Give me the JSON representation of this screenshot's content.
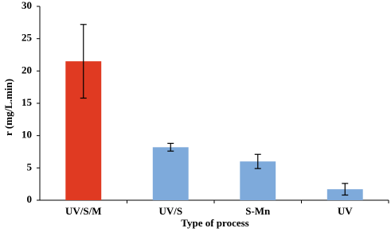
{
  "chart_data": {
    "type": "bar",
    "x_label": "Type of process",
    "y_label": "r (mg/L.min)",
    "categories": [
      "UV/S/M",
      "UV/S",
      "S-Mn",
      "UV"
    ],
    "values": [
      21.5,
      8.2,
      6.0,
      1.7
    ],
    "errors": [
      5.7,
      0.6,
      1.1,
      0.9
    ],
    "colors": [
      "#e03a22",
      "#7eaadb",
      "#7eaadb",
      "#7eaadb"
    ],
    "ylim": [
      0,
      30
    ],
    "yticks": [
      0,
      5,
      10,
      15,
      20,
      25,
      30
    ],
    "grid": false
  }
}
